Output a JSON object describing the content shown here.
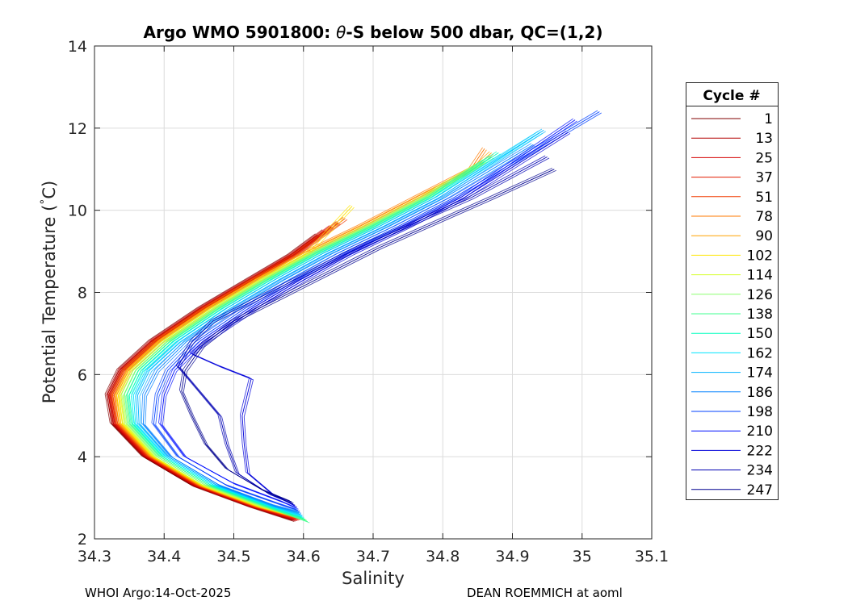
{
  "chart_data": {
    "type": "line",
    "title": "Argo WMO 5901800: θ-S below 500 dbar,  QC=(1,2)",
    "title_parts": {
      "prefix": "Argo WMO 5901800: ",
      "theta": "θ",
      "suffix": "-S below 500 dbar,  QC=(1,2)"
    },
    "xlabel": "Salinity",
    "ylabel_parts": {
      "prefix": "Potential Temperature (",
      "degree": "°",
      "suffix": "C)"
    },
    "xlim": [
      34.3,
      35.1
    ],
    "ylim": [
      2,
      14
    ],
    "xticks": [
      34.3,
      34.4,
      34.5,
      34.6,
      34.7,
      34.8,
      34.9,
      35.0,
      35.1
    ],
    "xtick_labels": [
      "34.3",
      "34.4",
      "34.5",
      "34.6",
      "34.7",
      "34.8",
      "34.9",
      "35",
      "35.1"
    ],
    "yticks": [
      2,
      4,
      6,
      8,
      10,
      12,
      14
    ],
    "ytick_labels": [
      "2",
      "4",
      "6",
      "8",
      "10",
      "12",
      "14"
    ],
    "grid": true,
    "legend": {
      "title": "Cycle #",
      "placement": "outside-right",
      "entries": [
        {
          "label": "1",
          "color": "#800000"
        },
        {
          "label": "13",
          "color": "#b30000"
        },
        {
          "label": "25",
          "color": "#d40000"
        },
        {
          "label": "37",
          "color": "#e21b00"
        },
        {
          "label": "51",
          "color": "#f03c00"
        },
        {
          "label": "78",
          "color": "#ff7a00"
        },
        {
          "label": "90",
          "color": "#ffa200"
        },
        {
          "label": "102",
          "color": "#ffe600"
        },
        {
          "label": "114",
          "color": "#d4ff2a"
        },
        {
          "label": "126",
          "color": "#8cff70"
        },
        {
          "label": "138",
          "color": "#40ff90"
        },
        {
          "label": "150",
          "color": "#00ffbf"
        },
        {
          "label": "162",
          "color": "#00e5ff"
        },
        {
          "label": "174",
          "color": "#00b3ff"
        },
        {
          "label": "186",
          "color": "#0080ff"
        },
        {
          "label": "198",
          "color": "#0040ff"
        },
        {
          "label": "210",
          "color": "#0010ff"
        },
        {
          "label": "222",
          "color": "#0000d9"
        },
        {
          "label": "234",
          "color": "#0000b3"
        },
        {
          "label": "247",
          "color": "#00008f"
        }
      ]
    },
    "series": [
      {
        "name": "1",
        "color": "#800000",
        "x": [
          34.584,
          34.52,
          34.44,
          34.37,
          34.325,
          34.318,
          34.335,
          34.38,
          34.45,
          34.52,
          34.58,
          34.62
        ],
        "y": [
          2.45,
          2.8,
          3.3,
          4.0,
          4.8,
          5.5,
          6.1,
          6.8,
          7.6,
          8.3,
          8.9,
          9.4
        ]
      },
      {
        "name": "13",
        "color": "#b30000",
        "x": [
          34.586,
          34.522,
          34.442,
          34.372,
          34.327,
          34.32,
          34.337,
          34.382,
          34.452,
          34.522,
          34.582,
          34.63
        ],
        "y": [
          2.46,
          2.8,
          3.3,
          4.0,
          4.8,
          5.5,
          6.1,
          6.8,
          7.6,
          8.3,
          8.9,
          9.5
        ]
      },
      {
        "name": "25",
        "color": "#d40000",
        "x": [
          34.588,
          34.524,
          34.444,
          34.374,
          34.329,
          34.322,
          34.339,
          34.384,
          34.454,
          34.524,
          34.584,
          34.64
        ],
        "y": [
          2.47,
          2.8,
          3.3,
          4.0,
          4.8,
          5.5,
          6.1,
          6.8,
          7.6,
          8.3,
          8.9,
          9.6
        ]
      },
      {
        "name": "37",
        "color": "#e21b00",
        "x": [
          34.59,
          34.526,
          34.446,
          34.376,
          34.331,
          34.324,
          34.341,
          34.386,
          34.456,
          34.526,
          34.586,
          34.65
        ],
        "y": [
          2.48,
          2.8,
          3.3,
          4.0,
          4.8,
          5.5,
          6.1,
          6.8,
          7.6,
          8.3,
          8.9,
          9.7
        ]
      },
      {
        "name": "51",
        "color": "#f03c00",
        "x": [
          34.592,
          34.528,
          34.448,
          34.378,
          34.333,
          34.326,
          34.343,
          34.388,
          34.458,
          34.528,
          34.588,
          34.66
        ],
        "y": [
          2.49,
          2.8,
          3.3,
          4.0,
          4.8,
          5.5,
          6.1,
          6.8,
          7.6,
          8.3,
          8.9,
          9.8
        ]
      },
      {
        "name": "78",
        "color": "#ff7a00",
        "x": [
          34.594,
          34.53,
          34.45,
          34.38,
          34.335,
          34.328,
          34.345,
          34.39,
          34.46,
          34.53,
          34.6,
          34.68,
          34.76,
          34.84,
          34.86
        ],
        "y": [
          2.5,
          2.8,
          3.3,
          4.0,
          4.8,
          5.5,
          6.1,
          6.8,
          7.6,
          8.3,
          8.95,
          9.6,
          10.3,
          11.0,
          11.5
        ]
      },
      {
        "name": "90",
        "color": "#ffa200",
        "x": [
          34.596,
          34.532,
          34.452,
          34.382,
          34.338,
          34.332,
          34.349,
          34.394,
          34.464,
          34.534,
          34.604,
          34.684,
          34.764,
          34.844,
          34.87
        ],
        "y": [
          2.5,
          2.8,
          3.3,
          4.0,
          4.8,
          5.5,
          6.1,
          6.8,
          7.6,
          8.3,
          8.95,
          9.6,
          10.3,
          11.0,
          11.4
        ]
      },
      {
        "name": "102",
        "color": "#ffe600",
        "x": [
          34.598,
          34.534,
          34.454,
          34.384,
          34.34,
          34.334,
          34.351,
          34.396,
          34.466,
          34.536,
          34.606,
          34.67
        ],
        "y": [
          2.5,
          2.8,
          3.3,
          4.0,
          4.8,
          5.5,
          6.1,
          6.8,
          7.6,
          8.3,
          8.95,
          10.1
        ]
      },
      {
        "name": "114",
        "color": "#d4ff2a",
        "x": [
          34.6,
          34.536,
          34.456,
          34.386,
          34.343,
          34.338,
          34.355,
          34.4,
          34.47,
          34.54,
          34.61,
          34.69,
          34.77,
          34.85
        ],
        "y": [
          2.5,
          2.8,
          3.3,
          4.0,
          4.8,
          5.5,
          6.1,
          6.8,
          7.6,
          8.3,
          8.95,
          9.6,
          10.3,
          11.1
        ]
      },
      {
        "name": "126",
        "color": "#8cff70",
        "x": [
          34.602,
          34.54,
          34.46,
          34.39,
          34.347,
          34.342,
          34.359,
          34.404,
          34.474,
          34.544,
          34.614,
          34.694,
          34.774,
          34.86
        ],
        "y": [
          2.48,
          2.8,
          3.3,
          4.0,
          4.8,
          5.5,
          6.1,
          6.8,
          7.6,
          8.3,
          8.95,
          9.6,
          10.3,
          11.2
        ]
      },
      {
        "name": "138",
        "color": "#40ff90",
        "x": [
          34.606,
          34.544,
          34.464,
          34.394,
          34.351,
          34.346,
          34.363,
          34.408,
          34.478,
          34.548,
          34.618,
          34.698,
          34.778,
          34.87
        ],
        "y": [
          2.42,
          2.8,
          3.3,
          4.0,
          4.8,
          5.5,
          6.1,
          6.8,
          7.6,
          8.3,
          8.95,
          9.6,
          10.3,
          11.3
        ]
      },
      {
        "name": "150",
        "color": "#00ffbf",
        "x": [
          34.6,
          34.548,
          34.468,
          34.398,
          34.355,
          34.35,
          34.367,
          34.412,
          34.482,
          34.552,
          34.622,
          34.702,
          34.782,
          34.88
        ],
        "y": [
          2.5,
          2.8,
          3.3,
          4.0,
          4.8,
          5.5,
          6.1,
          6.8,
          7.6,
          8.3,
          8.95,
          9.6,
          10.3,
          11.4
        ]
      },
      {
        "name": "162",
        "color": "#00e5ff",
        "x": [
          34.598,
          34.552,
          34.472,
          34.402,
          34.359,
          34.356,
          34.373,
          34.418,
          34.488,
          34.558,
          34.628,
          34.708,
          34.788,
          34.94
        ],
        "y": [
          2.55,
          2.8,
          3.3,
          4.0,
          4.8,
          5.5,
          6.1,
          6.8,
          7.6,
          8.3,
          8.95,
          9.6,
          10.3,
          11.9
        ]
      },
      {
        "name": "174",
        "color": "#00b3ff",
        "x": [
          34.596,
          34.556,
          34.476,
          34.406,
          34.364,
          34.362,
          34.379,
          34.424,
          34.494,
          34.564,
          34.634,
          34.714,
          34.794,
          34.945
        ],
        "y": [
          2.6,
          2.8,
          3.3,
          4.0,
          4.8,
          5.5,
          6.1,
          6.8,
          7.6,
          8.3,
          8.95,
          9.6,
          10.3,
          11.95
        ]
      },
      {
        "name": "186",
        "color": "#0080ff",
        "x": [
          34.594,
          34.56,
          34.48,
          34.41,
          34.37,
          34.372,
          34.39,
          34.432,
          34.502,
          34.572,
          34.642,
          34.722,
          34.802,
          34.93
        ],
        "y": [
          2.65,
          2.8,
          3.3,
          4.0,
          4.8,
          5.5,
          6.1,
          6.8,
          7.6,
          8.3,
          8.95,
          9.6,
          10.3,
          11.6
        ]
      },
      {
        "name": "198",
        "color": "#0040ff",
        "x": [
          34.592,
          34.565,
          34.49,
          34.42,
          34.385,
          34.39,
          34.405,
          34.445,
          34.515,
          34.585,
          34.655,
          34.735,
          34.815,
          35.025
        ],
        "y": [
          2.7,
          2.85,
          3.3,
          4.0,
          4.8,
          5.5,
          6.1,
          6.8,
          7.6,
          8.3,
          8.95,
          9.6,
          10.3,
          12.4
        ]
      },
      {
        "name": "210",
        "color": "#0010ff",
        "x": [
          34.59,
          34.57,
          34.5,
          34.43,
          34.395,
          34.4,
          34.415,
          34.455,
          34.525,
          34.595,
          34.665,
          34.745,
          34.825,
          34.99
        ],
        "y": [
          2.75,
          2.9,
          3.35,
          4.0,
          4.8,
          5.5,
          6.1,
          6.8,
          7.6,
          8.3,
          8.95,
          9.6,
          10.3,
          12.2
        ]
      },
      {
        "name": "222",
        "color": "#0000d9",
        "x": [
          34.588,
          34.555,
          34.52,
          34.515,
          34.512,
          34.525,
          34.51,
          34.48,
          34.44,
          34.46,
          34.53,
          34.6,
          34.67,
          34.75,
          34.83,
          34.98
        ],
        "y": [
          2.8,
          3.1,
          3.6,
          4.3,
          5.0,
          5.9,
          6.0,
          6.2,
          6.5,
          6.8,
          7.6,
          8.3,
          8.95,
          9.6,
          10.3,
          11.9
        ]
      },
      {
        "name": "234",
        "color": "#0000b3",
        "x": [
          34.585,
          34.55,
          34.505,
          34.49,
          34.48,
          34.45,
          34.42,
          34.44,
          34.47,
          34.54,
          34.61,
          34.68,
          34.76,
          34.84,
          34.95
        ],
        "y": [
          2.85,
          3.1,
          3.6,
          4.3,
          5.0,
          5.6,
          6.2,
          6.8,
          7.3,
          7.9,
          8.5,
          9.1,
          9.7,
          10.3,
          11.3
        ]
      },
      {
        "name": "247",
        "color": "#00008f",
        "x": [
          34.583,
          34.54,
          34.49,
          34.46,
          34.44,
          34.425,
          34.43,
          34.455,
          34.5,
          34.57,
          34.64,
          34.71,
          34.79,
          34.87,
          34.96
        ],
        "y": [
          2.9,
          3.2,
          3.7,
          4.3,
          5.0,
          5.6,
          6.1,
          6.7,
          7.3,
          7.9,
          8.5,
          9.1,
          9.7,
          10.3,
          11.0
        ]
      }
    ]
  },
  "footer": {
    "left": "WHOI Argo:14-Oct-2025",
    "right": "DEAN ROEMMICH at aoml"
  }
}
